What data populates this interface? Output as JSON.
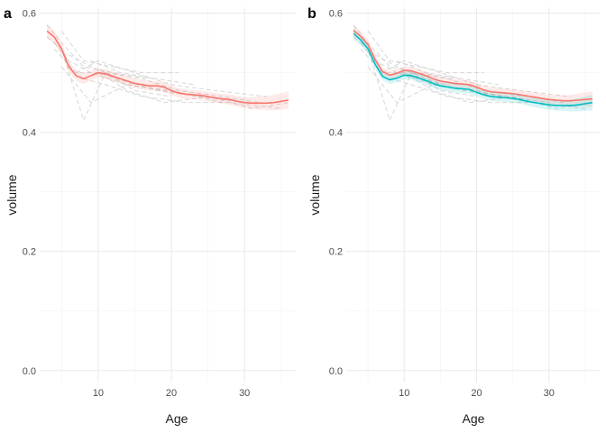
{
  "chart_data": [
    {
      "panel": "a",
      "type": "line",
      "xlabel": "Age",
      "ylabel": "volume",
      "xlim": [
        2,
        37
      ],
      "ylim": [
        -0.02,
        0.61
      ],
      "x_ticks": [
        10,
        20,
        30
      ],
      "y_ticks": [
        0.0,
        0.2,
        0.4,
        0.6
      ],
      "y_tick_labels": [
        "0.0",
        "0.2",
        "0.4",
        "0.6"
      ],
      "grid": true,
      "background_trajectories": [
        {
          "x": [
            3,
            5,
            8,
            12,
            17
          ],
          "y": [
            0.58,
            0.55,
            0.51,
            0.5,
            0.49
          ]
        },
        {
          "x": [
            3,
            5,
            8,
            11,
            15,
            20
          ],
          "y": [
            0.56,
            0.54,
            0.42,
            0.5,
            0.47,
            0.46
          ]
        },
        {
          "x": [
            4,
            6,
            9,
            14,
            19,
            24
          ],
          "y": [
            0.55,
            0.52,
            0.5,
            0.48,
            0.47,
            0.46
          ]
        },
        {
          "x": [
            5,
            8,
            12,
            16,
            21
          ],
          "y": [
            0.57,
            0.52,
            0.51,
            0.5,
            0.5
          ]
        },
        {
          "x": [
            6,
            9,
            13,
            18,
            24,
            30
          ],
          "y": [
            0.53,
            0.51,
            0.49,
            0.47,
            0.46,
            0.45
          ]
        },
        {
          "x": [
            7,
            10,
            15,
            20,
            26,
            33
          ],
          "y": [
            0.5,
            0.52,
            0.5,
            0.48,
            0.47,
            0.46
          ]
        },
        {
          "x": [
            8,
            11,
            16,
            22,
            28,
            35
          ],
          "y": [
            0.49,
            0.48,
            0.46,
            0.45,
            0.45,
            0.44
          ]
        },
        {
          "x": [
            9,
            13,
            18,
            23
          ],
          "y": [
            0.52,
            0.5,
            0.49,
            0.48
          ]
        },
        {
          "x": [
            10,
            14,
            19,
            25,
            31,
            36
          ],
          "y": [
            0.5,
            0.47,
            0.45,
            0.46,
            0.44,
            0.45
          ]
        },
        {
          "x": [
            4,
            7,
            10,
            15
          ],
          "y": [
            0.54,
            0.5,
            0.5,
            0.48
          ]
        },
        {
          "x": [
            11,
            16,
            21,
            27,
            32
          ],
          "y": [
            0.5,
            0.49,
            0.47,
            0.46,
            0.45
          ]
        },
        {
          "x": [
            5,
            9,
            14,
            20,
            27
          ],
          "y": [
            0.51,
            0.45,
            0.48,
            0.47,
            0.45
          ]
        }
      ],
      "series": [
        {
          "color": "#F8766D",
          "x": [
            3,
            4,
            5,
            6,
            7,
            8,
            9,
            10,
            11,
            12,
            13,
            14,
            15,
            16,
            17,
            18,
            19,
            20,
            21,
            22,
            23,
            24,
            25,
            26,
            27,
            28,
            29,
            30,
            31,
            32,
            33,
            34,
            35,
            36
          ],
          "y": [
            0.57,
            0.56,
            0.54,
            0.51,
            0.495,
            0.49,
            0.495,
            0.5,
            0.498,
            0.494,
            0.49,
            0.486,
            0.482,
            0.48,
            0.478,
            0.478,
            0.476,
            0.47,
            0.466,
            0.464,
            0.463,
            0.462,
            0.46,
            0.458,
            0.456,
            0.455,
            0.452,
            0.45,
            0.449,
            0.449,
            0.449,
            0.45,
            0.452,
            0.454
          ],
          "band_halfwidth": [
            0.012,
            0.011,
            0.01,
            0.009,
            0.009,
            0.009,
            0.008,
            0.008,
            0.008,
            0.008,
            0.008,
            0.008,
            0.008,
            0.008,
            0.008,
            0.008,
            0.008,
            0.008,
            0.008,
            0.008,
            0.008,
            0.008,
            0.008,
            0.008,
            0.008,
            0.009,
            0.009,
            0.009,
            0.01,
            0.011,
            0.012,
            0.013,
            0.014,
            0.015
          ]
        }
      ]
    },
    {
      "panel": "b",
      "type": "line",
      "xlabel": "Age",
      "ylabel": "volume",
      "xlim": [
        2,
        37
      ],
      "ylim": [
        -0.02,
        0.61
      ],
      "x_ticks": [
        10,
        20,
        30
      ],
      "y_ticks": [
        0.0,
        0.2,
        0.4,
        0.6
      ],
      "y_tick_labels": [
        "0.0",
        "0.2",
        "0.4",
        "0.6"
      ],
      "grid": true,
      "background_trajectories": [
        {
          "x": [
            3,
            5,
            8,
            12,
            17
          ],
          "y": [
            0.58,
            0.55,
            0.51,
            0.5,
            0.49
          ]
        },
        {
          "x": [
            3,
            5,
            8,
            11,
            15,
            20
          ],
          "y": [
            0.56,
            0.54,
            0.42,
            0.5,
            0.47,
            0.46
          ]
        },
        {
          "x": [
            4,
            6,
            9,
            14,
            19,
            24
          ],
          "y": [
            0.55,
            0.52,
            0.5,
            0.48,
            0.47,
            0.46
          ]
        },
        {
          "x": [
            5,
            8,
            12,
            16,
            21
          ],
          "y": [
            0.57,
            0.52,
            0.51,
            0.5,
            0.5
          ]
        },
        {
          "x": [
            6,
            9,
            13,
            18,
            24,
            30
          ],
          "y": [
            0.53,
            0.51,
            0.49,
            0.47,
            0.46,
            0.45
          ]
        },
        {
          "x": [
            7,
            10,
            15,
            20,
            26,
            33
          ],
          "y": [
            0.5,
            0.52,
            0.5,
            0.48,
            0.47,
            0.46
          ]
        },
        {
          "x": [
            8,
            11,
            16,
            22,
            28,
            35
          ],
          "y": [
            0.49,
            0.48,
            0.46,
            0.45,
            0.45,
            0.44
          ]
        },
        {
          "x": [
            9,
            13,
            18,
            23
          ],
          "y": [
            0.52,
            0.5,
            0.49,
            0.48
          ]
        },
        {
          "x": [
            10,
            14,
            19,
            25,
            31,
            36
          ],
          "y": [
            0.5,
            0.47,
            0.45,
            0.46,
            0.44,
            0.45
          ]
        },
        {
          "x": [
            4,
            7,
            10,
            15
          ],
          "y": [
            0.54,
            0.5,
            0.5,
            0.48
          ]
        },
        {
          "x": [
            11,
            16,
            21,
            27,
            32
          ],
          "y": [
            0.5,
            0.49,
            0.47,
            0.46,
            0.45
          ]
        },
        {
          "x": [
            5,
            9,
            14,
            20,
            27
          ],
          "y": [
            0.51,
            0.45,
            0.48,
            0.47,
            0.45
          ]
        }
      ],
      "series": [
        {
          "color": "#F8766D",
          "x": [
            3,
            4,
            5,
            6,
            7,
            8,
            9,
            10,
            11,
            12,
            13,
            14,
            15,
            16,
            17,
            18,
            19,
            20,
            21,
            22,
            23,
            24,
            25,
            26,
            27,
            28,
            29,
            30,
            31,
            32,
            33,
            34,
            35,
            36
          ],
          "y": [
            0.571,
            0.561,
            0.547,
            0.522,
            0.502,
            0.496,
            0.499,
            0.504,
            0.503,
            0.499,
            0.495,
            0.49,
            0.486,
            0.484,
            0.482,
            0.481,
            0.48,
            0.476,
            0.471,
            0.468,
            0.467,
            0.466,
            0.465,
            0.463,
            0.461,
            0.459,
            0.457,
            0.455,
            0.454,
            0.453,
            0.453,
            0.454,
            0.455,
            0.456
          ],
          "band_halfwidth": [
            0.01,
            0.009,
            0.008,
            0.008,
            0.007,
            0.007,
            0.007,
            0.007,
            0.007,
            0.007,
            0.007,
            0.007,
            0.007,
            0.007,
            0.007,
            0.007,
            0.007,
            0.007,
            0.007,
            0.007,
            0.007,
            0.007,
            0.007,
            0.007,
            0.007,
            0.008,
            0.008,
            0.008,
            0.009,
            0.009,
            0.01,
            0.011,
            0.012,
            0.013
          ]
        },
        {
          "color": "#00BFC4",
          "x": [
            3,
            4,
            5,
            6,
            7,
            8,
            9,
            10,
            11,
            12,
            13,
            14,
            15,
            16,
            17,
            18,
            19,
            20,
            21,
            22,
            23,
            24,
            25,
            26,
            27,
            28,
            29,
            30,
            31,
            32,
            33,
            34,
            35,
            36
          ],
          "y": [
            0.566,
            0.555,
            0.54,
            0.514,
            0.494,
            0.488,
            0.491,
            0.496,
            0.495,
            0.491,
            0.487,
            0.482,
            0.478,
            0.476,
            0.474,
            0.473,
            0.472,
            0.467,
            0.463,
            0.46,
            0.459,
            0.458,
            0.457,
            0.455,
            0.452,
            0.45,
            0.448,
            0.446,
            0.445,
            0.445,
            0.445,
            0.446,
            0.448,
            0.45
          ],
          "band_halfwidth": [
            0.01,
            0.009,
            0.008,
            0.008,
            0.007,
            0.007,
            0.007,
            0.007,
            0.007,
            0.007,
            0.007,
            0.007,
            0.007,
            0.007,
            0.007,
            0.007,
            0.007,
            0.007,
            0.007,
            0.007,
            0.007,
            0.007,
            0.007,
            0.007,
            0.007,
            0.008,
            0.008,
            0.008,
            0.009,
            0.009,
            0.01,
            0.011,
            0.012,
            0.013
          ]
        }
      ]
    }
  ]
}
